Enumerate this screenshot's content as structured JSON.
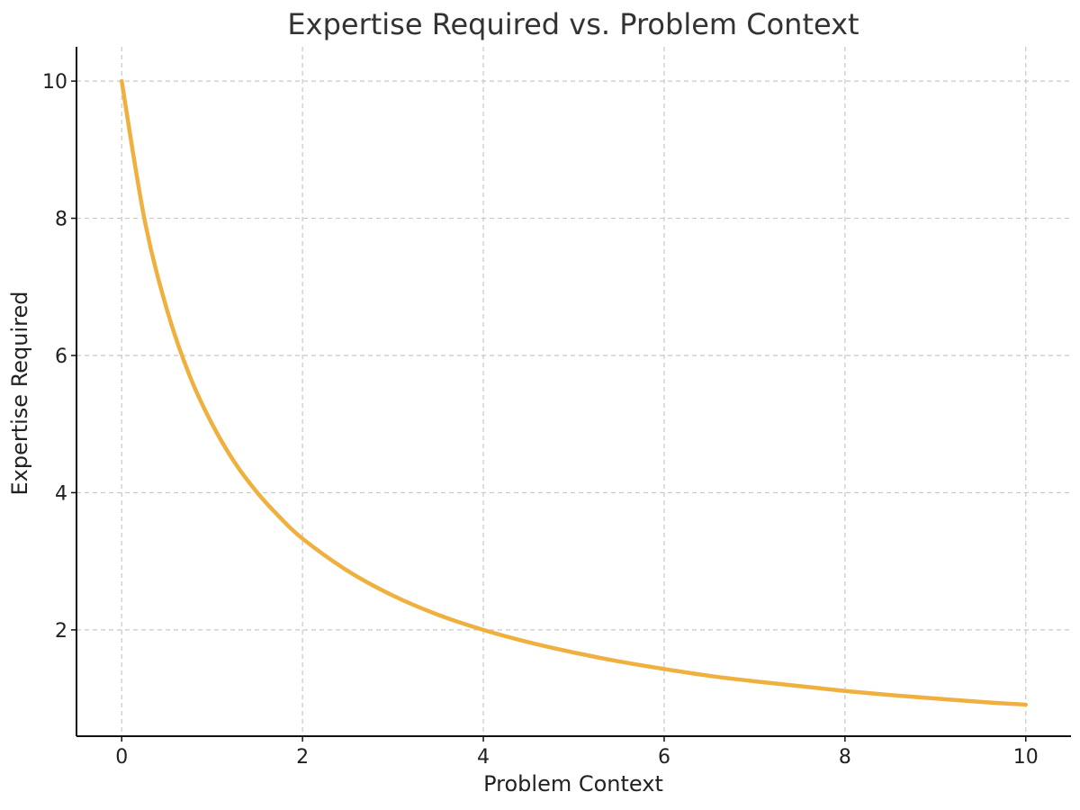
{
  "chart_data": {
    "type": "line",
    "title": "Expertise Required vs. Problem Context",
    "xlabel": "Problem Context",
    "ylabel": "Expertise Required",
    "xlim": [
      -0.5,
      10.5
    ],
    "ylim": [
      0.45,
      10.5
    ],
    "xticks": [
      0,
      2,
      4,
      6,
      8,
      10
    ],
    "yticks": [
      2,
      4,
      6,
      8,
      10
    ],
    "grid": true,
    "series": [
      {
        "color": "#f0b03f",
        "x": [
          0,
          0.25,
          0.5,
          0.75,
          1,
          1.25,
          1.5,
          1.75,
          2,
          2.5,
          3,
          3.5,
          4,
          4.5,
          5,
          5.5,
          6,
          6.5,
          7,
          7.5,
          8,
          8.5,
          9,
          9.5,
          10
        ],
        "y": [
          10,
          8.0,
          6.67,
          5.71,
          5.0,
          4.44,
          4.0,
          3.64,
          3.33,
          2.86,
          2.5,
          2.22,
          2.0,
          1.82,
          1.67,
          1.54,
          1.43,
          1.33,
          1.25,
          1.18,
          1.11,
          1.05,
          1.0,
          0.95,
          0.91
        ]
      }
    ]
  }
}
